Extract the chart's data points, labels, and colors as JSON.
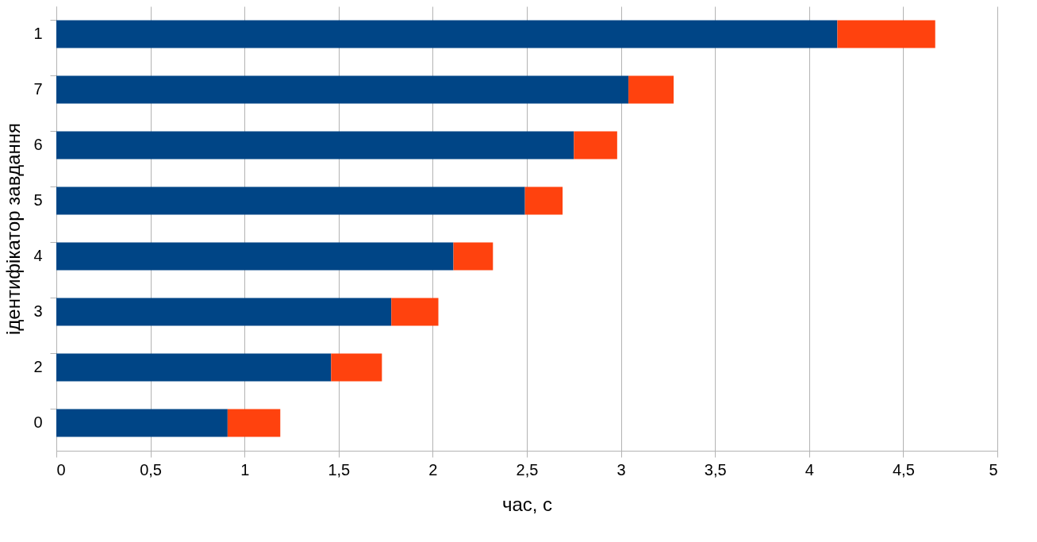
{
  "chart_data": {
    "type": "bar",
    "orientation": "horizontal",
    "stacked": true,
    "xlabel": "час, с",
    "ylabel": "ідентифікатор завдання",
    "categories": [
      "1",
      "7",
      "6",
      "5",
      "4",
      "3",
      "2",
      "0"
    ],
    "series": [
      {
        "color": "#004586",
        "values": [
          4.15,
          3.04,
          2.75,
          2.49,
          2.11,
          1.78,
          1.46,
          0.91
        ]
      },
      {
        "color": "#ff420e",
        "values": [
          0.52,
          0.24,
          0.23,
          0.2,
          0.21,
          0.25,
          0.27,
          0.28
        ]
      }
    ],
    "xlim": [
      0,
      5
    ],
    "xticks": [
      0,
      {
        "value": 0.5,
        "label": "0,5"
      },
      1,
      {
        "value": 1.5,
        "label": "1,5"
      },
      2,
      {
        "value": 2.5,
        "label": "2,5"
      },
      3,
      {
        "value": 3.5,
        "label": "3,5"
      },
      4,
      {
        "value": 4.5,
        "label": "4,5"
      },
      5
    ],
    "grid": "x"
  }
}
